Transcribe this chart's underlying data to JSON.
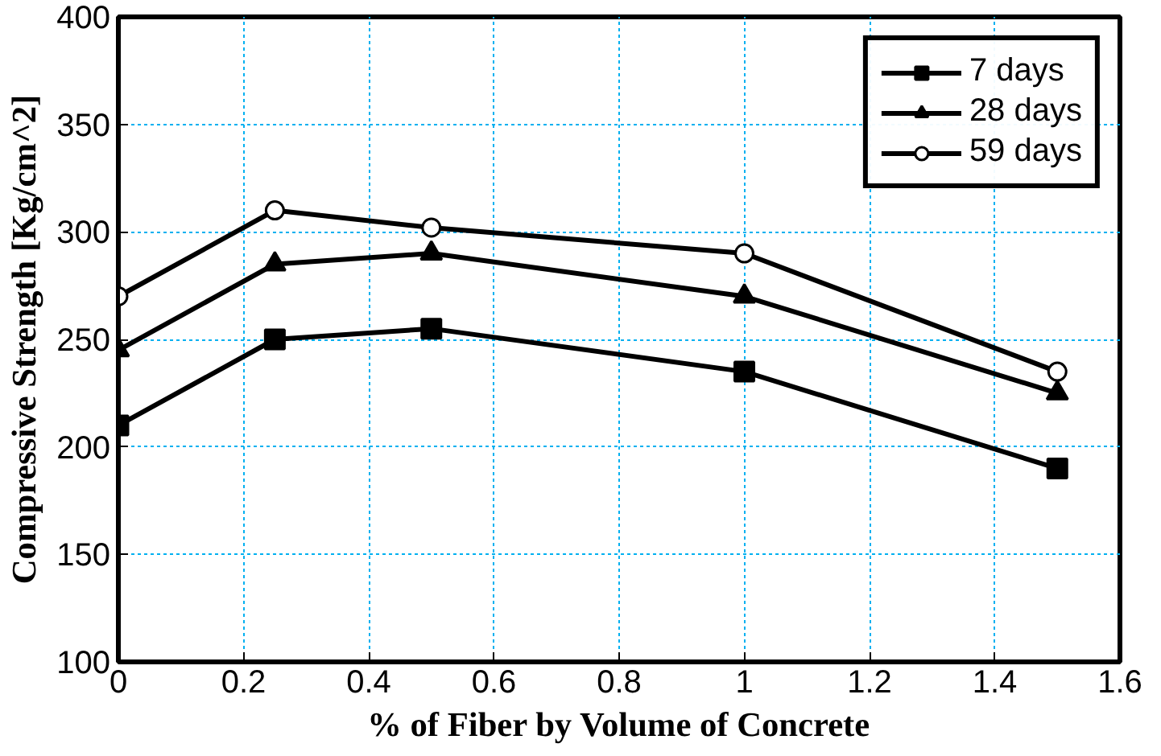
{
  "chart_data": {
    "type": "line",
    "xlabel": "% of Fiber by Volume of Concrete",
    "ylabel": "Compressive Strength [Kg/cm^2]",
    "x": [
      0,
      0.25,
      0.5,
      1,
      1.5
    ],
    "series": [
      {
        "name": "7 days",
        "color": "#000000",
        "marker": "square",
        "values": [
          210,
          250,
          255,
          235,
          190
        ]
      },
      {
        "name": "28 days",
        "color": "#000000",
        "marker": "triangle",
        "values": [
          245,
          285,
          290,
          270,
          225
        ]
      },
      {
        "name": "59 days",
        "color": "#000000",
        "marker": "circle",
        "values": [
          270,
          310,
          302,
          290,
          235
        ]
      }
    ],
    "xlim": [
      0,
      1.6
    ],
    "xticks": [
      0,
      0.2,
      0.4,
      0.6,
      0.8,
      1,
      1.2,
      1.4,
      1.6
    ],
    "ylim": [
      100,
      400
    ],
    "yticks": [
      100,
      150,
      200,
      250,
      300,
      350,
      400
    ],
    "grid": true,
    "legend": "top right",
    "line_style": "solid"
  }
}
